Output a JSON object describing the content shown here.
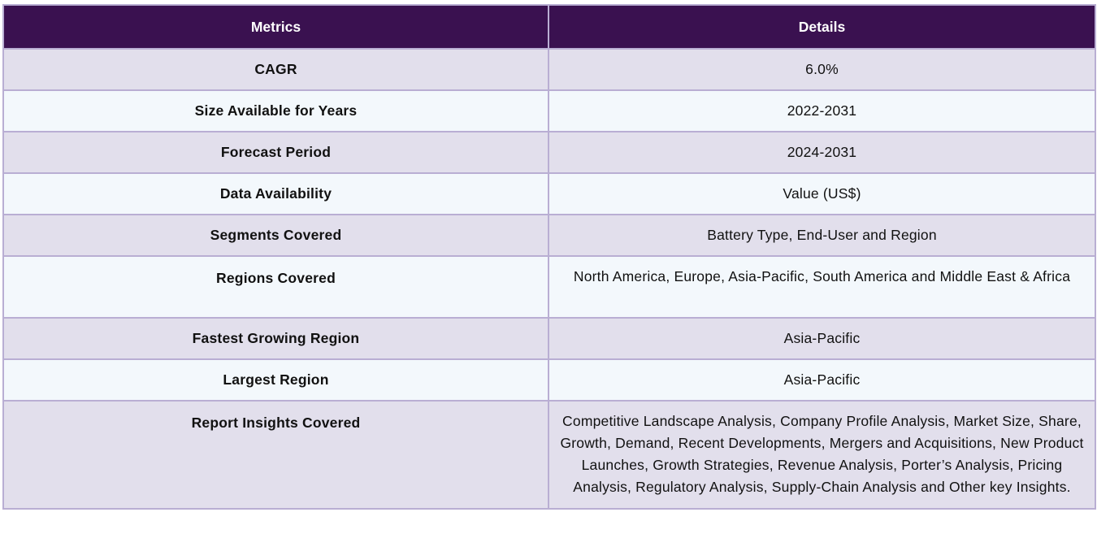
{
  "table": {
    "headers": [
      "Metrics",
      "Details"
    ],
    "rows": [
      {
        "metric": "CAGR",
        "details": "6.0%"
      },
      {
        "metric": "Size Available for Years",
        "details": "2022-2031"
      },
      {
        "metric": "Forecast Period",
        "details": "2024-2031"
      },
      {
        "metric": "Data Availability",
        "details": "Value (US$)"
      },
      {
        "metric": "Segments Covered",
        "details": "Battery Type, End-User and Region"
      },
      {
        "metric": "Regions Covered",
        "details": "North America, Europe, Asia-Pacific, South America and Middle East & Africa"
      },
      {
        "metric": "Fastest Growing Region",
        "details": "Asia-Pacific"
      },
      {
        "metric": "Largest Region",
        "details": "Asia-Pacific"
      },
      {
        "metric": "Report Insights Covered",
        "details": "Competitive Landscape Analysis, Company Profile Analysis, Market Size, Share, Growth, Demand, Recent Developments, Mergers and Acquisitions, New Product Launches, Growth Strategies, Revenue Analysis, Porter’s Analysis, Pricing Analysis, Regulatory Analysis, Supply-Chain Analysis and Other key Insights."
      }
    ]
  },
  "colors": {
    "header_bg": "#3a1150",
    "row_odd_bg": "#e2dfec",
    "row_even_bg": "#f3f8fc",
    "border": "#b9aed3"
  }
}
